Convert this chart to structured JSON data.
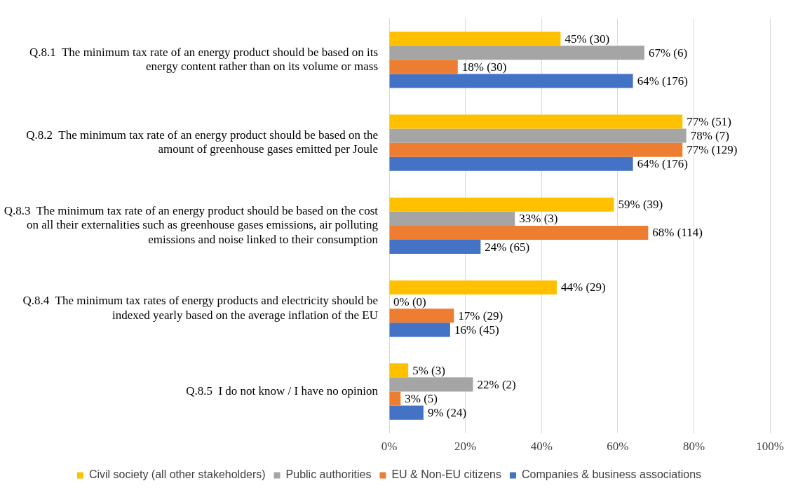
{
  "chart_data": {
    "type": "bar",
    "orientation": "horizontal",
    "categories": [
      "Q.8.1  The minimum tax rate of an energy product should be based on its energy content rather than on its volume or mass",
      "Q.8.2  The minimum tax rate of an energy product should be based on the amount of greenhouse gases emitted per Joule",
      "Q.8.3  The minimum tax rate of an energy product should be based on the cost on all their externalities such as greenhouse gases emissions, air polluting emissions and noise linked to their consumption",
      "Q.8.4  The minimum tax rates of energy products and electricity should be indexed yearly based on the average inflation of the EU",
      "Q.8.5  I do not know / I have no opinion"
    ],
    "series": [
      {
        "name": "Civil society (all other stakeholders)",
        "color": "#ffc000",
        "values": [
          45,
          77,
          59,
          44,
          5
        ],
        "value_labels": [
          "45% (30)",
          "77% (51)",
          "59% (39)",
          "44% (29)",
          "5% (3)"
        ]
      },
      {
        "name": "Public authorities",
        "color": "#a5a5a5",
        "values": [
          67,
          78,
          33,
          0,
          22
        ],
        "value_labels": [
          "67% (6)",
          "78% (7)",
          "33% (3)",
          "0% (0)",
          "22% (2)"
        ]
      },
      {
        "name": "EU & Non-EU citizens",
        "color": "#ed7d31",
        "values": [
          18,
          77,
          68,
          17,
          3
        ],
        "value_labels": [
          "18% (30)",
          "77% (129)",
          "68% (114)",
          "17% (29)",
          "3% (5)"
        ]
      },
      {
        "name": "Companies & business associations",
        "color": "#4472c4",
        "values": [
          64,
          64,
          24,
          16,
          9
        ],
        "value_labels": [
          "64% (176)",
          "64% (176)",
          "24% (65)",
          "16% (45)",
          "9% (24)"
        ]
      }
    ],
    "xlim": [
      0,
      100
    ],
    "xticks": [
      {
        "value": 0,
        "label": "0%"
      },
      {
        "value": 20,
        "label": "20%"
      },
      {
        "value": 40,
        "label": "40%"
      },
      {
        "value": 60,
        "label": "60%"
      },
      {
        "value": 80,
        "label": "80%"
      },
      {
        "value": 100,
        "label": "100%"
      }
    ],
    "grid": "x",
    "legend": "bottom"
  }
}
